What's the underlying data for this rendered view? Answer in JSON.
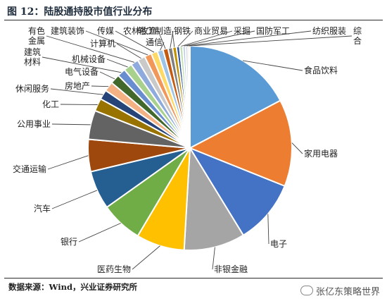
{
  "title": "图 12：陆股通持股市值行业分布",
  "source": "数据来源：Wind，兴业证券研究所",
  "watermark": "张亿东策略世界",
  "watermark_icon": "wechat-icon",
  "chart_data": {
    "type": "pie",
    "title": "图 12：陆股通持股市值行业分布",
    "unit": "",
    "start_angle_deg": 0,
    "direction": "clockwise",
    "slices": [
      {
        "label": "食品饮料",
        "value": 17.0,
        "color": "#5b9bd5"
      },
      {
        "label": "家用电器",
        "value": 13.5,
        "color": "#ed7d31"
      },
      {
        "label": "电子",
        "value": 10.0,
        "color": "#4472c4"
      },
      {
        "label": "非银金融",
        "value": 9.5,
        "color": "#a5a5a5"
      },
      {
        "label": "医药生物",
        "value": 7.5,
        "color": "#ffc000"
      },
      {
        "label": "银行",
        "value": 6.5,
        "color": "#70ad47"
      },
      {
        "label": "汽车",
        "value": 6.0,
        "color": "#255e91"
      },
      {
        "label": "交通运输",
        "value": 5.0,
        "color": "#9e480e"
      },
      {
        "label": "公用事业",
        "value": 4.5,
        "color": "#636363"
      },
      {
        "label": "化工",
        "value": 2.0,
        "color": "#997300"
      },
      {
        "label": "休闲服务",
        "value": 1.5,
        "color": "#264478"
      },
      {
        "label": "房地产",
        "value": 1.5,
        "color": "#f4b183"
      },
      {
        "label": "电气设备",
        "value": 1.5,
        "color": "#43682b"
      },
      {
        "label": "建筑材料",
        "value": 1.3,
        "color": "#698ed0"
      },
      {
        "label": "机械设备",
        "value": 1.3,
        "color": "#a9d18e"
      },
      {
        "label": "有色金属",
        "value": 1.2,
        "color": "#8faadc"
      },
      {
        "label": "计算机",
        "value": 1.2,
        "color": "#c9c9c9"
      },
      {
        "label": "建筑装饰",
        "value": 1.1,
        "color": "#f1975a"
      },
      {
        "label": "传媒",
        "value": 1.0,
        "color": "#ffd966"
      },
      {
        "label": "通信",
        "value": 0.9,
        "color": "#9dc3e6"
      },
      {
        "label": "农林牧渔",
        "value": 0.8,
        "color": "#c55a11"
      },
      {
        "label": "轻工制造",
        "value": 0.7,
        "color": "#7f7f7f"
      },
      {
        "label": "钢铁",
        "value": 0.6,
        "color": "#bf9000"
      },
      {
        "label": "商业贸易",
        "value": 0.5,
        "color": "#2f5597"
      },
      {
        "label": "采掘",
        "value": 0.5,
        "color": "#c5e0b4"
      },
      {
        "label": "国防军工",
        "value": 0.4,
        "color": "#b4c7e7"
      },
      {
        "label": "纺织服装",
        "value": 0.4,
        "color": "#d6dce5"
      },
      {
        "label": "综合",
        "value": 0.3,
        "color": "#fbe5d6"
      }
    ]
  }
}
